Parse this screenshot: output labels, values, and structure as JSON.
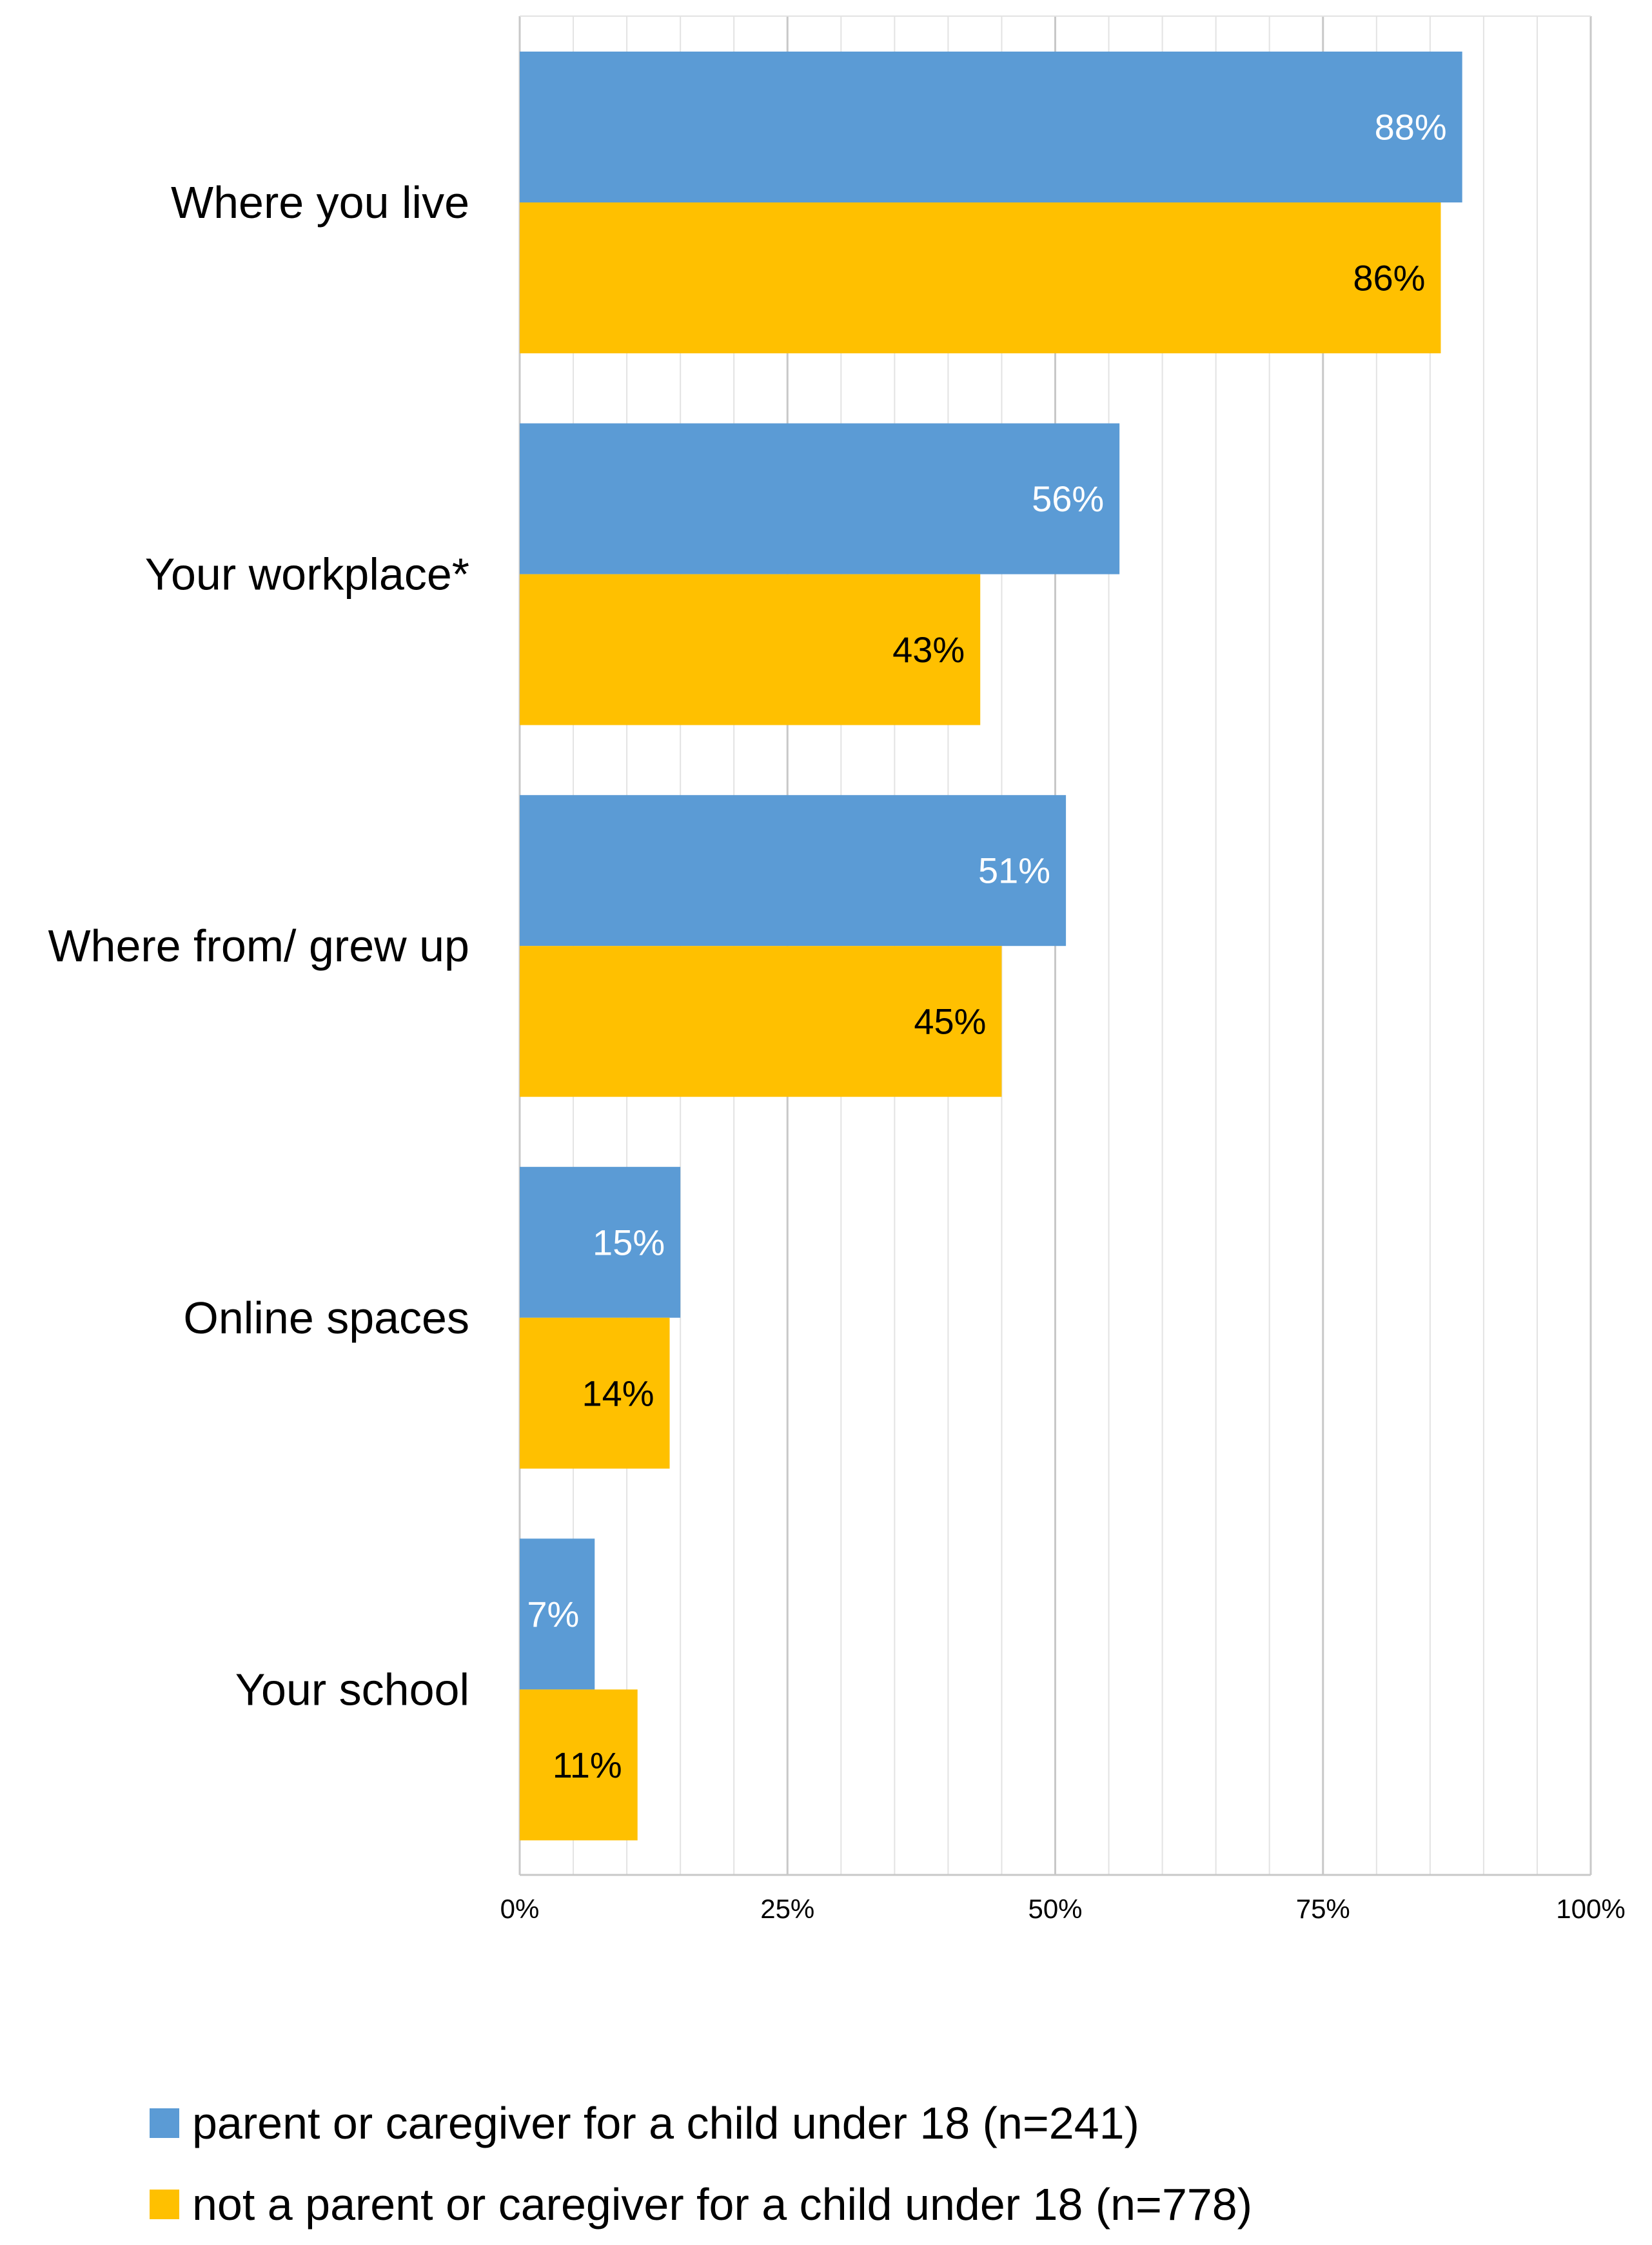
{
  "chart_data": {
    "type": "bar",
    "orientation": "horizontal",
    "categories": [
      "Where you live",
      "Your workplace*",
      "Where from/ grew up",
      "Online spaces",
      "Your school"
    ],
    "series": [
      {
        "name": "parent or caregiver for a child under 18 (n=241)",
        "color": "#5B9BD5",
        "label_color": "#FFFFFF",
        "values": [
          88,
          56,
          51,
          15,
          7
        ],
        "labels": [
          "88%",
          "56%",
          "51%",
          "15%",
          "7%"
        ]
      },
      {
        "name": "not a parent or caregiver for a child under 18 (n=778)",
        "color": "#FFC000",
        "label_color": "#000000",
        "values": [
          86,
          43,
          45,
          14,
          11
        ],
        "labels": [
          "86%",
          "43%",
          "45%",
          "14%",
          "11%"
        ]
      }
    ],
    "xlim": [
      0,
      100
    ],
    "ticks": [
      0,
      25,
      50,
      75,
      100
    ],
    "tick_labels": [
      "0%",
      "25%",
      "50%",
      "75%",
      "100%"
    ],
    "grid": true,
    "legend_position": "bottom",
    "title": "",
    "xlabel": "",
    "ylabel": ""
  }
}
